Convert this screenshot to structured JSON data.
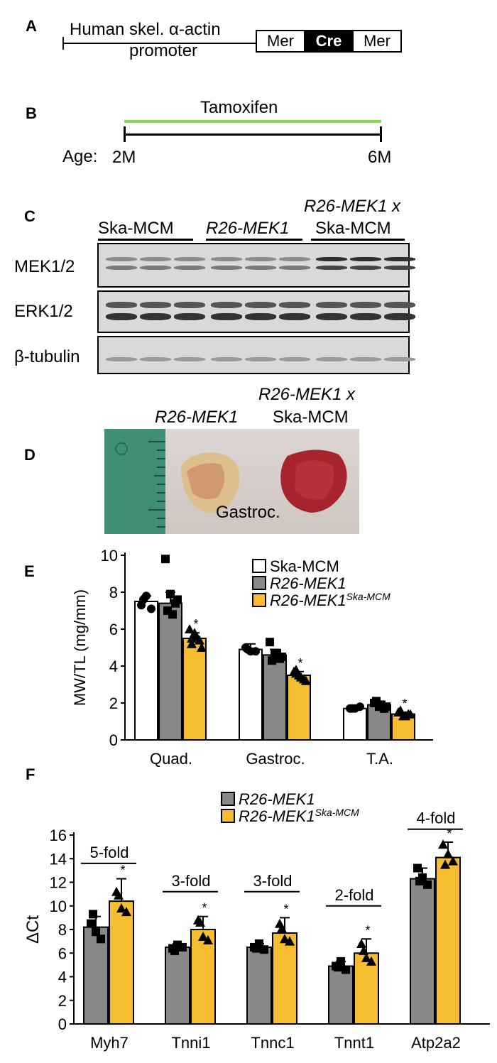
{
  "panels": {
    "A": {
      "label": "A",
      "promoter_line1": "Human skel. α-actin",
      "promoter_line2": "promoter",
      "box_left": "Mer",
      "box_mid": "Cre",
      "box_right": "Mer"
    },
    "B": {
      "label": "B",
      "drug": "Tamoxifen",
      "age_label": "Age:",
      "start": "2M",
      "end": "6M",
      "drug_color": "#7fe04a"
    },
    "C": {
      "label": "C",
      "groups": [
        "Ska-MCM",
        "R26-MEK1",
        "R26-MEK1 x",
        "Ska-MCM"
      ],
      "rows": [
        "MEK1/2",
        "ERK1/2",
        "β-tubulin"
      ]
    },
    "D": {
      "label": "D",
      "left_sample": "R26-MEK1",
      "right_sample_line1": "R26-MEK1 x",
      "right_sample_line2": "Ska-MCM",
      "tissue": "Gastroc."
    },
    "E": {
      "label": "E",
      "legend": [
        {
          "label": "Ska-MCM",
          "sup": ""
        },
        {
          "label": "R26-MEK1",
          "sup": ""
        },
        {
          "label": "R26-MEK1",
          "sup": "Ska-MCM"
        }
      ]
    },
    "F": {
      "label": "F",
      "legend": [
        {
          "label": "R26-MEK1",
          "sup": ""
        },
        {
          "label": "R26-MEK1",
          "sup": "Ska-MCM"
        }
      ],
      "folds": [
        "5-fold",
        "3-fold",
        "3-fold",
        "2-fold",
        "4-fold"
      ]
    }
  },
  "chart_data": [
    {
      "type": "bar",
      "panel": "E",
      "ylabel": "MW/TL (mg/mm)",
      "ylim": [
        0,
        10
      ],
      "yticks": [
        0,
        2,
        4,
        6,
        8,
        10
      ],
      "categories": [
        "Quad.",
        "Gastroc.",
        "T.A."
      ],
      "series": [
        {
          "name": "Ska-MCM",
          "color": "#ffffff",
          "marker": "circle",
          "values": [
            7.5,
            4.9,
            1.7
          ],
          "errors": [
            0.3,
            0.3,
            0.1
          ],
          "points": [
            [
              7.3,
              7.8,
              7.1,
              7.6
            ],
            [
              5.0,
              4.8,
              4.8,
              4.9
            ],
            [
              1.7,
              1.7,
              1.8,
              1.7
            ]
          ]
        },
        {
          "name": "R26-MEK1",
          "color": "#888888",
          "marker": "square",
          "values": [
            7.4,
            4.6,
            1.9
          ],
          "errors": [
            0.6,
            0.3,
            0.2
          ],
          "points": [
            [
              9.8,
              7.9,
              7.4,
              7.0,
              6.8,
              7.6
            ],
            [
              5.3,
              4.7,
              4.4,
              4.3,
              4.7,
              4.5
            ],
            [
              2.0,
              1.8,
              1.7,
              2.1,
              1.9,
              1.8
            ]
          ]
        },
        {
          "name": "R26-MEK1 Ska-MCM",
          "color": "#f5bd2f",
          "marker": "triangle",
          "values": [
            5.5,
            3.5,
            1.4
          ],
          "errors": [
            0.3,
            0.2,
            0.1
          ],
          "points": [
            [
              6.0,
              5.8,
              5.4,
              5.2,
              5.6,
              5.0,
              5.5
            ],
            [
              3.7,
              3.5,
              3.3,
              3.6,
              3.4,
              3.2,
              3.8
            ],
            [
              1.5,
              1.3,
              1.4,
              1.6,
              1.3,
              1.4,
              1.5
            ]
          ]
        }
      ],
      "significance": [
        "*",
        "*",
        "*"
      ]
    },
    {
      "type": "bar",
      "panel": "F",
      "ylabel": "ΔCt",
      "ylim": [
        0,
        16
      ],
      "yticks": [
        0,
        2,
        4,
        6,
        8,
        10,
        12,
        14,
        16
      ],
      "categories": [
        "Myh7",
        "Tnni1",
        "Tnnc1",
        "Tnnt1",
        "Atp2a2"
      ],
      "series": [
        {
          "name": "R26-MEK1",
          "color": "#888888",
          "marker": "square",
          "values": [
            8.2,
            6.5,
            6.5,
            4.9,
            12.3
          ],
          "errors": [
            0.9,
            0.3,
            0.3,
            0.4,
            0.9
          ],
          "points": [
            [
              8.5,
              7.8,
              7.2,
              9.3
            ],
            [
              6.4,
              6.7,
              6.5,
              6.2
            ],
            [
              6.5,
              6.8,
              6.3,
              6.4
            ],
            [
              4.9,
              5.3,
              4.6,
              4.8
            ],
            [
              13.2,
              12.4,
              11.8,
              12.1
            ]
          ]
        },
        {
          "name": "R26-MEK1 Ska-MCM",
          "color": "#f5bd2f",
          "marker": "triangle",
          "values": [
            10.4,
            8.0,
            7.7,
            6.0,
            14.1
          ],
          "errors": [
            1.9,
            1.1,
            1.3,
            1.2,
            1.3
          ],
          "points": [
            [
              11.2,
              9.8,
              9.5,
              10.9
            ],
            [
              8.8,
              7.4,
              7.1,
              8.6
            ],
            [
              8.5,
              7.2,
              7.0,
              8.1
            ],
            [
              6.8,
              5.6,
              5.3,
              6.2
            ],
            [
              15.2,
              14.4,
              13.8,
              13.5
            ]
          ]
        }
      ],
      "significance": [
        "*",
        "*",
        "*",
        "*",
        "*"
      ]
    }
  ]
}
